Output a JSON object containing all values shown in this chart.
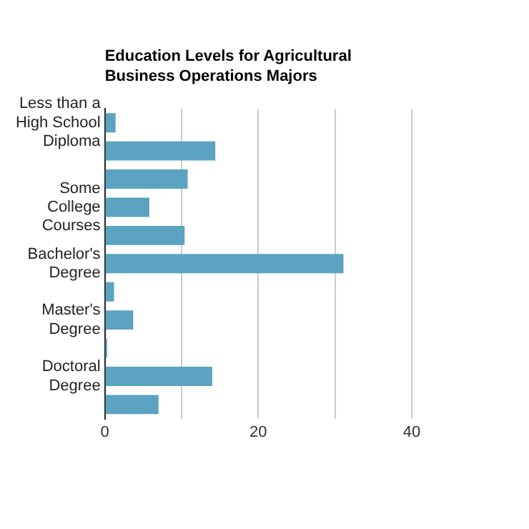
{
  "chart_data": {
    "type": "bar",
    "orientation": "horizontal",
    "title": "Education Levels for Agricultural Business Operations Majors",
    "categories": [
      "Less than a High School Diploma",
      null,
      null,
      "Some College Courses",
      null,
      "Bachelor's Degree",
      null,
      "Master's Degree",
      null,
      "Doctoral Degree",
      null
    ],
    "values": [
      1.4,
      14.4,
      10.8,
      5.8,
      10.4,
      31.1,
      1.2,
      3.7,
      0.3,
      14.0,
      7.0
    ],
    "color": "#5ba3c0",
    "xlim": [
      0,
      40
    ],
    "xticks": [
      0,
      {
        "value": 10,
        "label": null
      },
      20,
      {
        "value": 30,
        "label": null
      },
      40
    ],
    "grid": "x"
  }
}
